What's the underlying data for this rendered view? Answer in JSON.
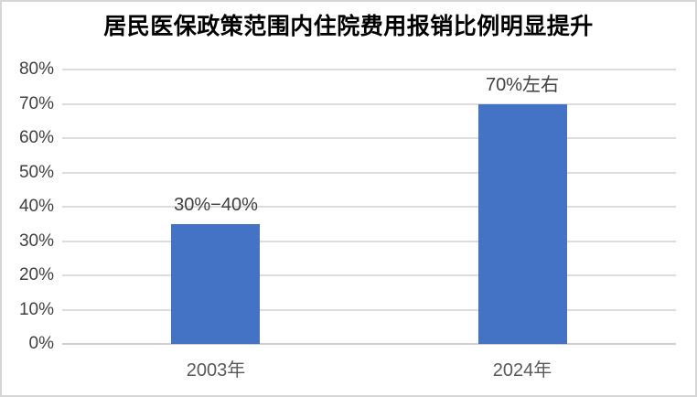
{
  "window": {
    "background": "#FFFFFF",
    "frame_border_color": "#D6D6D6"
  },
  "chart_data": {
    "type": "bar",
    "title": "居民医保政策范围内住院费用报销比例明显提升",
    "categories": [
      "2003年",
      "2024年"
    ],
    "values": [
      35,
      70
    ],
    "data_labels": [
      "30%−40%",
      "70%左右"
    ],
    "y_ticks": [
      "0%",
      "10%",
      "20%",
      "30%",
      "40%",
      "50%",
      "60%",
      "70%",
      "80%"
    ],
    "ylim": [
      0,
      80
    ],
    "y_tick_step": 10,
    "grid": true,
    "legend_position": "none",
    "bar_color": "#4472C4",
    "gridline_color": "#DDDDDD",
    "axis_line_color": "#CFCFCF",
    "tick_label_color": "#404040",
    "category_label_color": "#595959",
    "data_label_color": "#404040",
    "title_color": "#000000"
  }
}
